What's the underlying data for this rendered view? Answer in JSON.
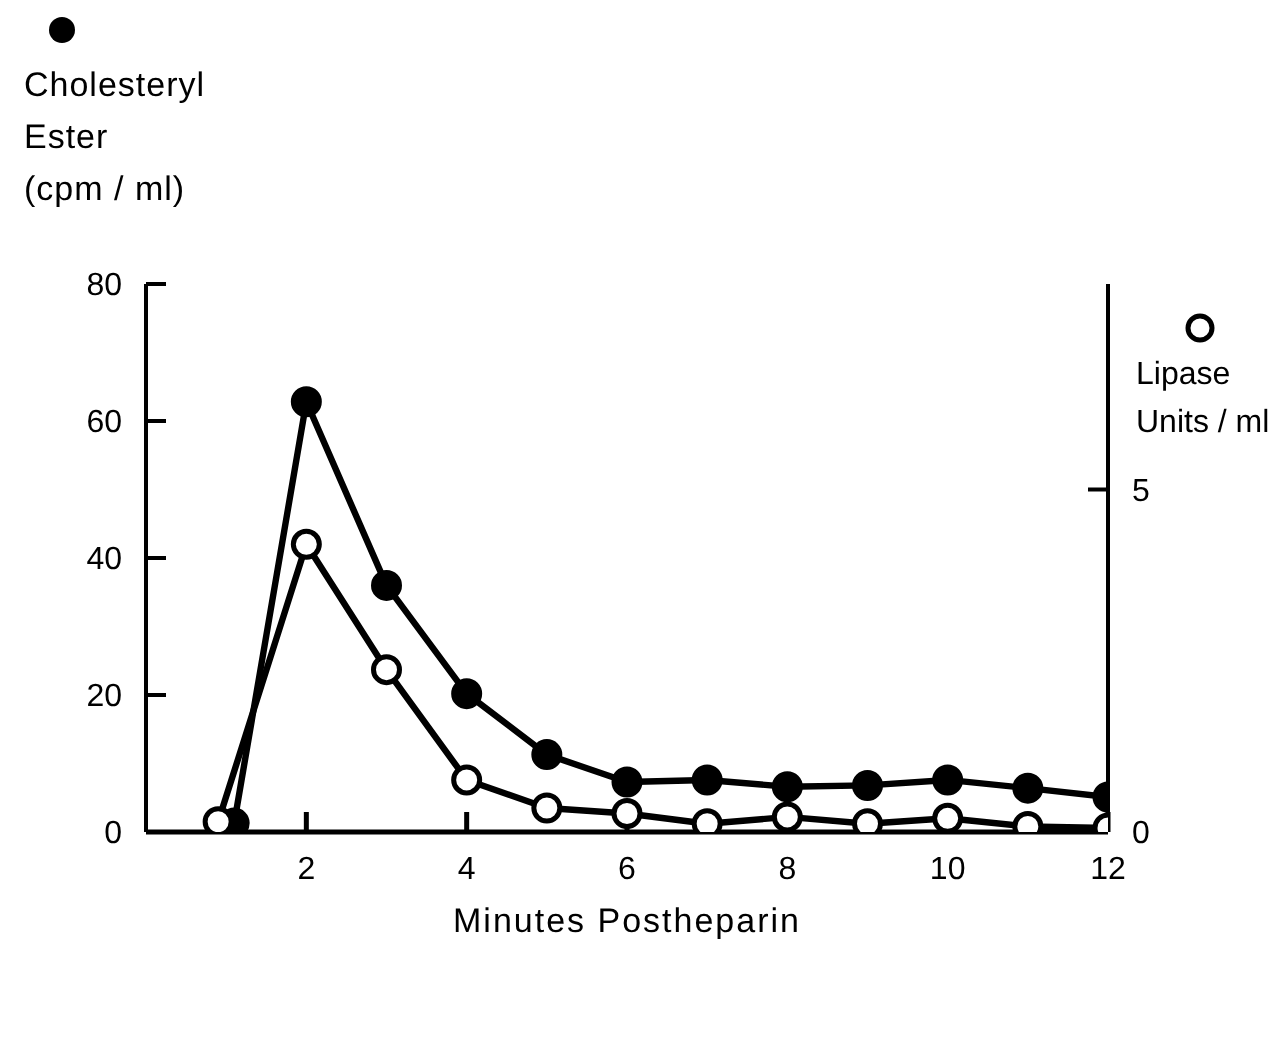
{
  "chart_data": {
    "type": "line",
    "xlabel": "Minutes Postheparin",
    "ylabel": "Cholesteryl Ester (cpm / ml)",
    "y2label": "Lipase Units / ml",
    "xlim": [
      0,
      12
    ],
    "xticks": [
      2,
      4,
      6,
      8,
      10,
      12
    ],
    "ylim": [
      0,
      80
    ],
    "yticks": [
      0,
      20,
      40,
      60,
      80
    ],
    "y2lim": [
      0,
      8
    ],
    "y2ticks": [
      0,
      5
    ],
    "grid": false,
    "legend": false,
    "marker": "circle",
    "line_style": "solid",
    "series": [
      {
        "color": "#000000",
        "x": [
          1.1,
          2,
          3,
          4,
          5,
          6,
          7,
          8,
          9,
          10,
          11,
          12
        ],
        "values": [
          1.3,
          62.8,
          36,
          20.2,
          11.3,
          7.3,
          7.6,
          6.6,
          6.8,
          7.6,
          6.4,
          5.1
        ]
      },
      {
        "color": "#000000",
        "axis": "y2",
        "x": [
          0.9,
          2,
          3,
          4,
          5,
          6,
          7,
          8,
          9,
          10,
          11,
          12
        ],
        "values": [
          0.15,
          4.2,
          2.37,
          0.76,
          0.35,
          0.27,
          0.12,
          0.22,
          0.12,
          0.2,
          0.08,
          0.06
        ]
      }
    ]
  }
}
